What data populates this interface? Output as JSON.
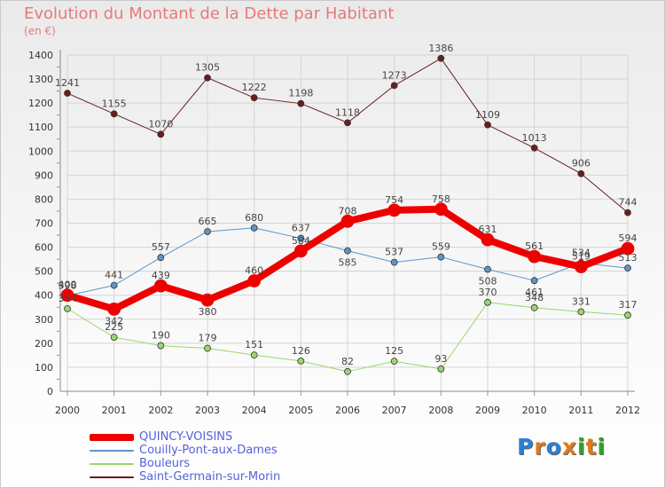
{
  "title": "Evolution du Montant de la Dette par Habitant",
  "unit_label": "(en €)",
  "logo": {
    "text": "Proxiti",
    "colors": [
      "#2f7fd0",
      "#e07a1a",
      "#2f7fd0",
      "#e07a1a",
      "#2aa52a",
      "#e07a1a",
      "#2aa52a"
    ]
  },
  "chart_data": {
    "type": "line",
    "x": [
      "2000",
      "2001",
      "2002",
      "2003",
      "2004",
      "2005",
      "2006",
      "2007",
      "2008",
      "2009",
      "2010",
      "2011",
      "2012"
    ],
    "ylim": [
      0,
      1400
    ],
    "yticks": [
      0,
      100,
      200,
      300,
      400,
      500,
      600,
      700,
      800,
      900,
      1000,
      1100,
      1200,
      1300,
      1400
    ],
    "grid": true,
    "legend_position": "bottom-left",
    "series": [
      {
        "name": "Saint-Germain-sur-Morin",
        "color": "#6b1c1c",
        "width": 1,
        "values": [
          1241,
          1155,
          1070,
          1305,
          1222,
          1198,
          1118,
          1273,
          1386,
          1109,
          1013,
          906,
          744
        ]
      },
      {
        "name": "Couilly-Pont-aux-Dames",
        "color": "#5b95c8",
        "width": 1,
        "values": [
          398,
          441,
          557,
          665,
          680,
          637,
          585,
          537,
          559,
          508,
          461,
          534,
          513
        ]
      },
      {
        "name": "Bouleurs",
        "color": "#99d66c",
        "width": 1,
        "values": [
          344,
          225,
          190,
          179,
          151,
          126,
          82,
          125,
          93,
          370,
          348,
          331,
          317
        ]
      },
      {
        "name": "QUINCY-VOISINS",
        "color": "#ee0000",
        "width": 8,
        "values": [
          400,
          342,
          439,
          380,
          460,
          584,
          708,
          754,
          758,
          631,
          561,
          519,
          594
        ]
      }
    ],
    "legend_order": [
      "QUINCY-VOISINS",
      "Couilly-Pont-aux-Dames",
      "Bouleurs",
      "Saint-Germain-sur-Morin"
    ]
  }
}
